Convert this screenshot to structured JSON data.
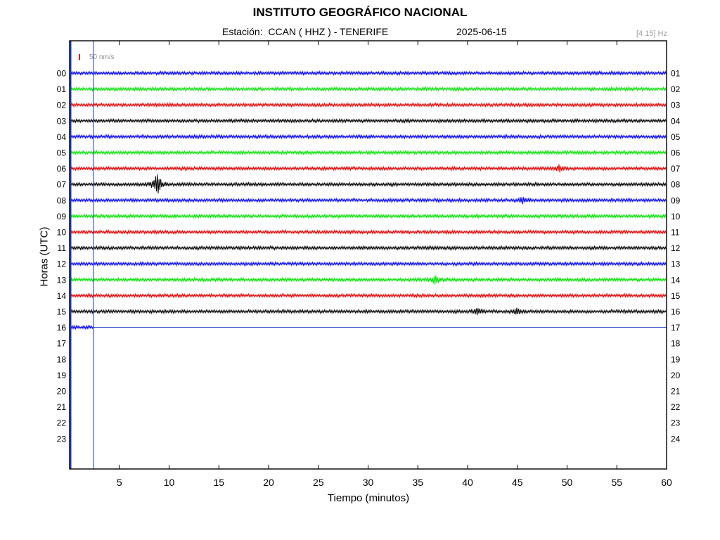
{
  "header": {
    "title": "INSTITUTO GEOGRÁFICO NACIONAL",
    "station": "Estación:  CCAN ( HHZ ) - TENERIFE",
    "date": "2025-06-15",
    "frequency_band": "[4 15] Hz"
  },
  "colors": {
    "frame": "#000000",
    "cursor": "#1c3fbf",
    "scale_mark": "#e00000",
    "scale_text": "#909090"
  },
  "chart_data": {
    "type": "line",
    "title": "INSTITUTO GEOGRÁFICO NACIONAL",
    "xlabel": "Tiempo (minutos)",
    "ylabel": "Horas (UTC)",
    "xlim": [
      0,
      60
    ],
    "x_ticks": [
      5,
      10,
      15,
      20,
      25,
      30,
      35,
      40,
      45,
      50,
      55,
      60
    ],
    "left_hour_labels": [
      "00",
      "01",
      "02",
      "03",
      "04",
      "05",
      "06",
      "07",
      "08",
      "09",
      "10",
      "11",
      "12",
      "13",
      "14",
      "15",
      "16",
      "17",
      "18",
      "19",
      "20",
      "21",
      "22",
      "23"
    ],
    "right_hour_labels": [
      "01",
      "02",
      "03",
      "04",
      "05",
      "06",
      "07",
      "08",
      "09",
      "10",
      "11",
      "12",
      "13",
      "14",
      "15",
      "16",
      "17",
      "18",
      "19",
      "20",
      "21",
      "22",
      "23",
      "24"
    ],
    "amplitude_scale": "50 nm/s",
    "series_color_cycle": [
      "#0000ff",
      "#00e000",
      "#e00000",
      "#000000"
    ],
    "completed_hours": 16,
    "current_hour": 16,
    "current_minute": 2.4,
    "events": [
      {
        "hour": 7,
        "minute": 8.8,
        "amplitude": 1.0
      },
      {
        "hour": 6,
        "minute": 49.2,
        "amplitude": 0.35
      },
      {
        "hour": 8,
        "minute": 45.5,
        "amplitude": 0.25
      },
      {
        "hour": 13,
        "minute": 36.8,
        "amplitude": 0.4
      },
      {
        "hour": 15,
        "minute": 41.0,
        "amplitude": 0.3
      },
      {
        "hour": 15,
        "minute": 45.0,
        "amplitude": 0.25
      }
    ],
    "grid": false,
    "legend": "none"
  }
}
